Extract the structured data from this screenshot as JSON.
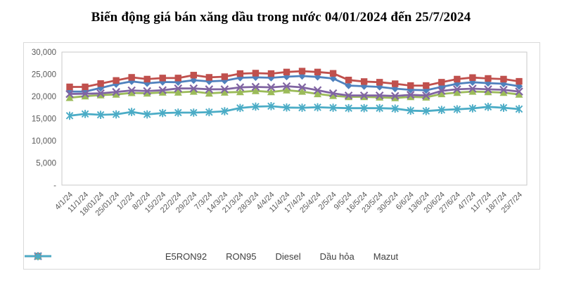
{
  "title": "Biến động giá bán xăng dầu trong nước 04/01/2024 đến 25/7/2024",
  "chart_data": {
    "type": "line",
    "title": "Biến động giá bán xăng dầu trong nước 04/01/2024 đến 25/7/2024",
    "xlabel": "",
    "ylabel": "",
    "ylim": [
      0,
      30000
    ],
    "ytick_interval": 5000,
    "yticks": [
      {
        "value": 0,
        "label": "-"
      },
      {
        "value": 5000,
        "label": "5,000"
      },
      {
        "value": 10000,
        "label": "10,000"
      },
      {
        "value": 15000,
        "label": "15,000"
      },
      {
        "value": 20000,
        "label": "20,000"
      },
      {
        "value": 25000,
        "label": "25,000"
      },
      {
        "value": 30000,
        "label": "30,000"
      }
    ],
    "grid": false,
    "legend_position": "bottom",
    "axis_label_color": "#595959",
    "legend_text_color": "#404040",
    "plot_border_color": "#c9c9c9",
    "frame_border_color": "#d9d9d9",
    "categories": [
      "4/1/24",
      "11/1/24",
      "18/01/24",
      "25/01/24",
      "1/2/24",
      "8/2/24",
      "15/2/24",
      "22/2/24",
      "29/2/24",
      "7/3/24",
      "14/3/24",
      "21/3/24",
      "28/3/24",
      "4/4/24",
      "11/4/24",
      "17/4/24",
      "25/4/24",
      "2/5/24",
      "9/5/24",
      "16/5/24",
      "23/5/24",
      "30/5/24",
      "6/6/24",
      "13/6/24",
      "20/6/24",
      "27/6/24",
      "4/7/24",
      "11/7/24",
      "18/7/24",
      "25/7/24"
    ],
    "series": [
      {
        "name": "E5RON92",
        "color": "#4F81BD",
        "marker": "diamond",
        "values": [
          21100,
          21100,
          21900,
          22750,
          23400,
          22950,
          23250,
          23200,
          23650,
          23400,
          23550,
          24200,
          24300,
          24200,
          24450,
          24600,
          24400,
          24050,
          22450,
          22300,
          22150,
          21750,
          21500,
          21400,
          22150,
          22850,
          23200,
          23000,
          22850,
          22300
        ]
      },
      {
        "name": "RON95",
        "color": "#C0504D",
        "marker": "square",
        "values": [
          22150,
          22150,
          22900,
          23600,
          24300,
          23900,
          24150,
          24150,
          24800,
          24300,
          24450,
          25150,
          25250,
          25150,
          25500,
          25700,
          25500,
          25200,
          23700,
          23350,
          23200,
          22850,
          22450,
          22450,
          23200,
          23900,
          24250,
          24050,
          23900,
          23400
        ]
      },
      {
        "name": "Diesel",
        "color": "#9BBB59",
        "marker": "triangle",
        "values": [
          19700,
          20050,
          20300,
          20450,
          20800,
          20700,
          20900,
          20900,
          21100,
          20700,
          20900,
          21000,
          21250,
          21000,
          21400,
          21100,
          20550,
          20150,
          19900,
          19900,
          19800,
          19650,
          19900,
          19800,
          20550,
          20850,
          21100,
          21000,
          20850,
          20450
        ]
      },
      {
        "name": "Dầu hỏa",
        "color": "#8064A2",
        "marker": "x",
        "values": [
          20550,
          20600,
          20700,
          21000,
          21350,
          21200,
          21400,
          21800,
          21800,
          21600,
          21600,
          22050,
          22150,
          22050,
          22300,
          22050,
          21400,
          20700,
          20200,
          20200,
          20200,
          20100,
          20350,
          20200,
          21250,
          21600,
          21750,
          21600,
          21500,
          21100
        ]
      },
      {
        "name": "Mazut",
        "color": "#4BACC6",
        "marker": "asterisk",
        "values": [
          15650,
          16050,
          15850,
          15950,
          16500,
          15950,
          16250,
          16350,
          16350,
          16450,
          16650,
          17400,
          17700,
          17800,
          17500,
          17450,
          17550,
          17450,
          17350,
          17350,
          17350,
          17250,
          16800,
          16700,
          16950,
          17100,
          17300,
          17650,
          17450,
          17150
        ]
      }
    ]
  }
}
